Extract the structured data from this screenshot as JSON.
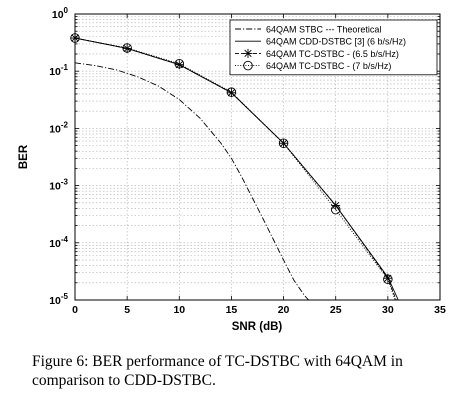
{
  "chart_data": {
    "type": "line",
    "xlabel": "SNR (dB)",
    "ylabel": "BER",
    "xlim": [
      0,
      35
    ],
    "ylim": [
      1e-05,
      1
    ],
    "yscale": "log",
    "grid": true,
    "x_ticks": [
      0,
      5,
      10,
      15,
      20,
      25,
      30,
      35
    ],
    "y_ticks": [
      {
        "value": 1,
        "mantissa": "10",
        "exp": "0"
      },
      {
        "value": 0.1,
        "mantissa": "10",
        "exp": "-1"
      },
      {
        "value": 0.01,
        "mantissa": "10",
        "exp": "-2"
      },
      {
        "value": 0.001,
        "mantissa": "10",
        "exp": "-3"
      },
      {
        "value": 0.0001,
        "mantissa": "10",
        "exp": "-4"
      },
      {
        "value": 1e-05,
        "mantissa": "10",
        "exp": "-5"
      }
    ],
    "legend_position": "top-right",
    "series": [
      {
        "name": "64QAM STBC --- Theoretical",
        "style": "dashdot",
        "marker": "none",
        "x": [
          0,
          2,
          4,
          6,
          8,
          10,
          12,
          14,
          15,
          16,
          18,
          20,
          21,
          22,
          22.4
        ],
        "y": [
          0.14,
          0.125,
          0.105,
          0.08,
          0.055,
          0.032,
          0.015,
          0.0055,
          0.003,
          0.0014,
          0.00027,
          5e-05,
          2.2e-05,
          1.2e-05,
          1e-05
        ]
      },
      {
        "name": "64QAM CDD-DSTBC [3] (6 b/s/Hz)",
        "style": "solid",
        "marker": "none",
        "x": [
          0,
          5,
          10,
          15,
          20,
          25,
          30,
          31
        ],
        "y": [
          0.38,
          0.25,
          0.13,
          0.042,
          0.0055,
          0.00045,
          2.5e-05,
          1e-05
        ]
      },
      {
        "name": "64QAM TC-DSTBC  - (6.5 b/s/Hz)",
        "style": "dashed",
        "marker": "star",
        "x": [
          0,
          5,
          10,
          15,
          20,
          25,
          30,
          30.8
        ],
        "y": [
          0.38,
          0.25,
          0.13,
          0.042,
          0.0055,
          0.00045,
          2.4e-05,
          1e-05
        ]
      },
      {
        "name": "64QAM TC-DSTBC  - (7 b/s/Hz)",
        "style": "dotted",
        "marker": "circle",
        "x": [
          0,
          5,
          10,
          15,
          20,
          25,
          30,
          30.7
        ],
        "y": [
          0.38,
          0.255,
          0.135,
          0.043,
          0.0055,
          0.00038,
          2.3e-05,
          1e-05
        ]
      }
    ]
  },
  "caption": "Figure 6:  BER performance of TC-DSTBC with 64QAM in comparison to CDD-DSTBC."
}
